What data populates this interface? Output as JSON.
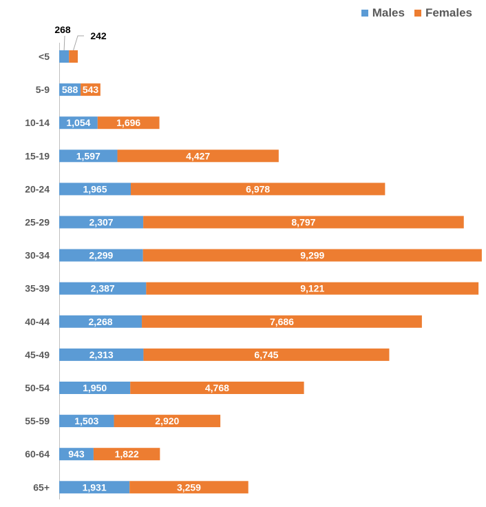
{
  "chart_data": {
    "type": "bar",
    "orientation": "horizontal",
    "stacked": true,
    "categories": [
      "<5",
      "5-9",
      "10-14",
      "15-19",
      "20-24",
      "25-29",
      "30-34",
      "35-39",
      "40-44",
      "45-49",
      "50-54",
      "55-59",
      "60-64",
      "65+"
    ],
    "series": [
      {
        "name": "Males",
        "color": "#5B9BD5",
        "values": [
          268,
          588,
          1054,
          1597,
          1965,
          2307,
          2299,
          2387,
          2268,
          2313,
          1950,
          1503,
          943,
          1931
        ],
        "labels": [
          "268",
          "588",
          "1,054",
          "1,597",
          "1,965",
          "2,307",
          "2,299",
          "2,387",
          "2,268",
          "2,313",
          "1,950",
          "1,503",
          "943",
          "1,931"
        ]
      },
      {
        "name": "Females",
        "color": "#ED7D31",
        "values": [
          242,
          543,
          1696,
          4427,
          6978,
          8797,
          9299,
          9121,
          7686,
          6745,
          4768,
          2920,
          1822,
          3259
        ],
        "labels": [
          "242",
          "543",
          "1,696",
          "4,427",
          "6,978",
          "8,797",
          "9,299",
          "9,121",
          "7,686",
          "6,745",
          "4,768",
          "2,920",
          "1,822",
          "3,259"
        ]
      }
    ],
    "legend_position": "top-right",
    "grid": false,
    "xlim": [
      0,
      11600
    ]
  }
}
